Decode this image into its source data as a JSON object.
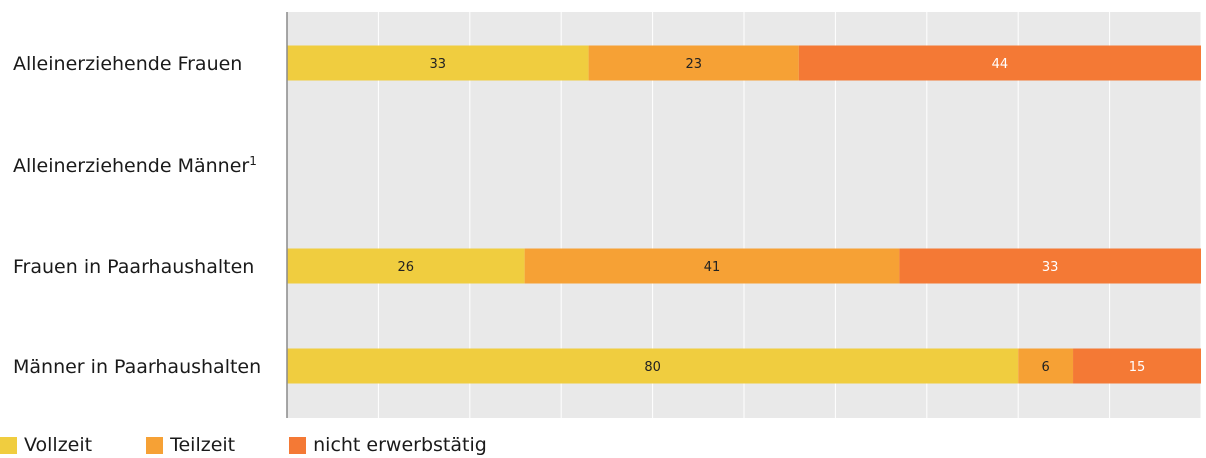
{
  "chart_data": {
    "type": "bar",
    "orientation": "horizontal",
    "stacked": true,
    "categories": [
      "Alleinerziehende Frauen",
      "Alleinerziehende Männer",
      "Frauen in Paarhaushalten",
      "Männer in Paarhaushalten"
    ],
    "category_superscripts": [
      "",
      "1",
      "",
      ""
    ],
    "series": [
      {
        "name": "Vollzeit",
        "color": "#f0cd3f",
        "label_color": "#222222",
        "values": [
          33,
          null,
          26,
          80
        ],
        "labels": [
          "33",
          "",
          "26",
          "80"
        ]
      },
      {
        "name": "Teilzeit",
        "color": "#f6a135",
        "label_color": "#222222",
        "values": [
          23,
          null,
          41,
          6
        ],
        "labels": [
          "23",
          "",
          "41",
          "6"
        ]
      },
      {
        "name": "nicht erwerbstätig",
        "color": "#f47935",
        "label_color": "#ffffff",
        "values": [
          44,
          null,
          33,
          15
        ],
        "labels": [
          "44",
          "",
          "33",
          "15"
        ]
      }
    ],
    "xlim": [
      0,
      100
    ],
    "grid": true,
    "gridline_step": 10,
    "legend_position": "bottom-left",
    "background_color": "#e9e9e9"
  }
}
